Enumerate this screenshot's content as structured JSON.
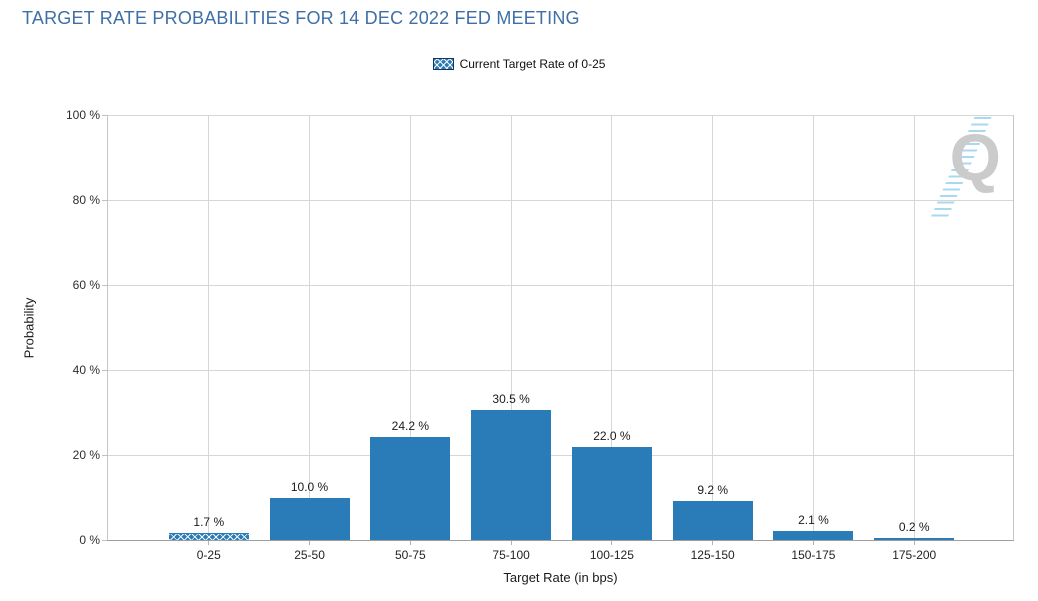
{
  "page": {
    "title": "TARGET RATE PROBABILITIES FOR 14 DEC 2022 FED MEETING"
  },
  "legend": {
    "label": "Current Target Rate of 0-25"
  },
  "watermark": {
    "letter": "Q"
  },
  "colors": {
    "bar": "#2a7cb8",
    "title": "#3e6fa7",
    "grid": "#d6d6d6",
    "axis": "#9e9e9e",
    "hatch_border": "#16365c",
    "watermark_gray": "#cbcbcb",
    "watermark_blue": "#a9d9f2"
  },
  "chart_data": {
    "type": "bar",
    "title": "TARGET RATE PROBABILITIES FOR 14 DEC 2022 FED MEETING",
    "categories": [
      "0-25",
      "25-50",
      "50-75",
      "75-100",
      "100-125",
      "125-150",
      "150-175",
      "175-200"
    ],
    "values": [
      1.7,
      10.0,
      24.2,
      30.5,
      22.0,
      9.2,
      2.1,
      0.2
    ],
    "value_labels": [
      "1.7 %",
      "10.0 %",
      "24.2 %",
      "30.5 %",
      "22.0 %",
      "9.2 %",
      "2.1 %",
      "0.2 %"
    ],
    "hatched_category_index": 0,
    "xlabel": "Target Rate (in bps)",
    "ylabel": "Probability",
    "ylim": [
      0,
      100
    ],
    "yticks": [
      0,
      20,
      40,
      60,
      80,
      100
    ],
    "ytick_labels": [
      "0 %",
      "20 %",
      "40 %",
      "60 %",
      "80 %",
      "100 %"
    ],
    "grid": true,
    "legend_position": "top-center",
    "legend_entries": [
      {
        "label": "Current Target Rate of 0-25",
        "swatch": "blue-crosshatch"
      }
    ],
    "bar_color": "#2a7cb8"
  }
}
